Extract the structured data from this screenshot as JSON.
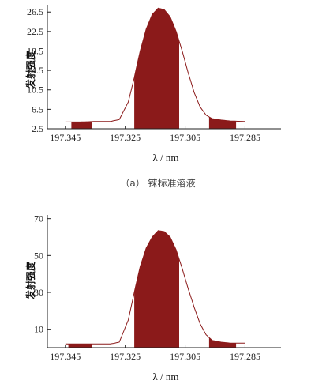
{
  "chart_data": [
    {
      "type": "area",
      "caption": "（a）  铼标准溶液",
      "ylabel": "发射强度",
      "xlabel": "λ / nm",
      "x_reversed": true,
      "xlim": [
        197.351,
        197.273
      ],
      "ylim": [
        2.5,
        28
      ],
      "x_ticks": [
        197.345,
        197.325,
        197.305,
        197.285
      ],
      "x_tick_labels": [
        "197.345",
        "197.325",
        "197.305",
        "197.285"
      ],
      "y_ticks": [
        2.5,
        6.5,
        10.5,
        14.5,
        18.5,
        22.5,
        26.5
      ],
      "y_tick_labels": [
        "2.5",
        "6.5",
        "10.5",
        "14.5",
        "18.5",
        "22.5",
        "26.5"
      ],
      "series": [
        {
          "x": [
            197.345,
            197.34,
            197.335,
            197.33,
            197.327,
            197.324,
            197.322,
            197.32,
            197.318,
            197.316,
            197.314,
            197.312,
            197.31,
            197.308,
            197.306,
            197.304,
            197.302,
            197.3,
            197.298,
            197.296,
            197.293,
            197.29,
            197.285
          ],
          "y": [
            3.9,
            3.9,
            4.0,
            4.0,
            4.4,
            8.0,
            13.0,
            18.5,
            23.0,
            26.0,
            27.3,
            27.0,
            25.5,
            22.5,
            18.5,
            14.0,
            10.0,
            7.0,
            5.3,
            4.6,
            4.3,
            4.1,
            4.0
          ]
        }
      ],
      "shaded_regions": [
        [
          197.343,
          197.336
        ],
        [
          197.322,
          197.307
        ],
        [
          197.297,
          197.288
        ]
      ],
      "colors": {
        "fill": "#8b1a1a",
        "line": "#8b1a1a"
      }
    },
    {
      "type": "area",
      "ylabel": "发射强度",
      "xlabel": "λ / nm",
      "x_reversed": true,
      "xlim": [
        197.351,
        197.273
      ],
      "ylim": [
        0,
        72
      ],
      "x_ticks": [
        197.345,
        197.325,
        197.305,
        197.285
      ],
      "x_tick_labels": [
        "197.345",
        "197.325",
        "197.305",
        "197.285"
      ],
      "y_ticks": [
        10,
        30,
        50,
        70
      ],
      "y_tick_labels": [
        "10",
        "30",
        "50",
        "70"
      ],
      "series": [
        {
          "x": [
            197.345,
            197.34,
            197.335,
            197.33,
            197.327,
            197.324,
            197.322,
            197.32,
            197.318,
            197.316,
            197.314,
            197.312,
            197.31,
            197.308,
            197.306,
            197.304,
            197.302,
            197.3,
            197.298,
            197.296,
            197.293,
            197.29,
            197.285
          ],
          "y": [
            2.0,
            2.0,
            2.0,
            2.0,
            3.0,
            15.0,
            30.0,
            44.0,
            54.0,
            60.0,
            63.5,
            63.0,
            60.0,
            53.0,
            43.0,
            32.0,
            22.0,
            13.0,
            7.0,
            4.0,
            3.0,
            2.5,
            2.5
          ]
        }
      ],
      "shaded_regions": [
        [
          197.344,
          197.336
        ],
        [
          197.322,
          197.307
        ],
        [
          197.297,
          197.288
        ]
      ],
      "colors": {
        "fill": "#8b1a1a",
        "line": "#8b1a1a"
      }
    }
  ]
}
